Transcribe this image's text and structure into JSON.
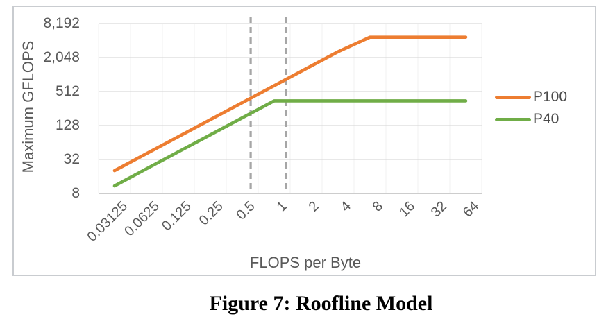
{
  "figure": {
    "caption": "Figure 7: Roofline Model"
  },
  "chart_data": {
    "type": "line",
    "title": "",
    "xlabel": "FLOPS per Byte",
    "ylabel": "Maximum GFLOPS",
    "x_scale": "log2-category",
    "y_scale": "log4",
    "ylim": [
      8,
      8192
    ],
    "x_min": 0.03125,
    "grid": "horizontal-major-on, faint-vertical-category-boundaries",
    "legend_position": "right",
    "categories": [
      "0.03125",
      "0.0625",
      "0.125",
      "0.25",
      "0.5",
      "1",
      "2",
      "4",
      "8",
      "16",
      "32",
      "64"
    ],
    "y_ticks": [
      {
        "value": 8,
        "label": "8"
      },
      {
        "value": 32,
        "label": "32"
      },
      {
        "value": 128,
        "label": "128"
      },
      {
        "value": 512,
        "label": "512"
      },
      {
        "value": 2048,
        "label": "2,048"
      },
      {
        "value": 8192,
        "label": "8,192"
      }
    ],
    "series": [
      {
        "name": "P100",
        "color": "#ED7D31",
        "values": [
          20.3,
          40.6,
          81.3,
          162.5,
          325,
          650,
          1300,
          2600,
          4700,
          4700,
          4700,
          4700
        ]
      },
      {
        "name": "P40",
        "color": "#70AD47",
        "values": [
          10.9,
          21.9,
          43.8,
          87.5,
          175,
          350,
          350,
          350,
          350,
          350,
          350,
          350
        ]
      }
    ],
    "reference_lines": [
      {
        "x": 0.6,
        "style": "dashed-vertical"
      },
      {
        "x": 1.3,
        "style": "dashed-vertical"
      }
    ],
    "colors": {
      "major_grid": "#d9d9d9",
      "minor_grid": "#f2f2f2",
      "axis_line": "#bfbfbf",
      "reference_dash": "#a6a6a6",
      "tick_text": "#595959"
    }
  }
}
